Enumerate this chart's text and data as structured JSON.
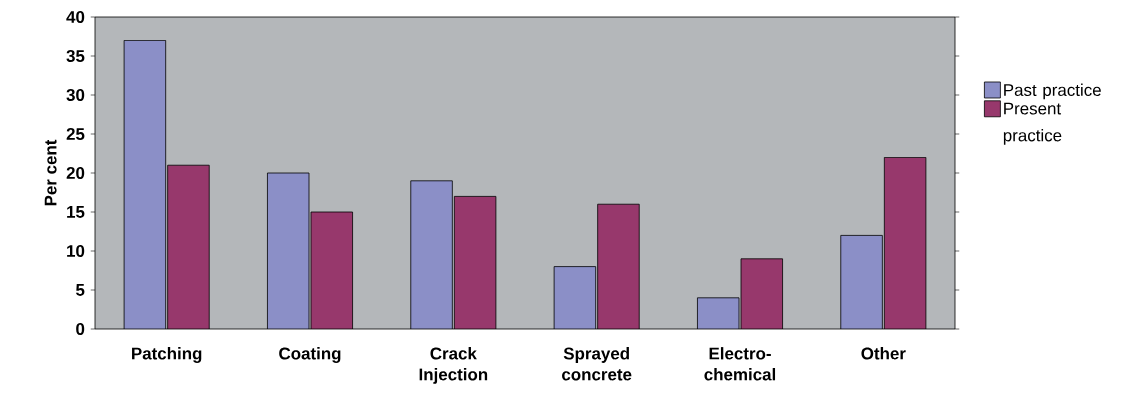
{
  "chart_data": {
    "type": "bar",
    "ylabel": "Per cent",
    "categories": [
      "Patching",
      "Coating",
      "Crack Injection",
      "Sprayed concrete",
      "Electro-chemical",
      "Other"
    ],
    "series": [
      {
        "name": "Past practice",
        "color": "#8b8fc7",
        "values": [
          37,
          20,
          19,
          8,
          4,
          12
        ]
      },
      {
        "name": "Present practice",
        "color": "#97386c",
        "values": [
          21,
          15,
          17,
          16,
          9,
          22
        ]
      }
    ],
    "ylim": [
      0,
      40
    ],
    "yticks": [
      0,
      5,
      10,
      15,
      20,
      25,
      30,
      35,
      40
    ],
    "grid": false,
    "legend": "right"
  }
}
